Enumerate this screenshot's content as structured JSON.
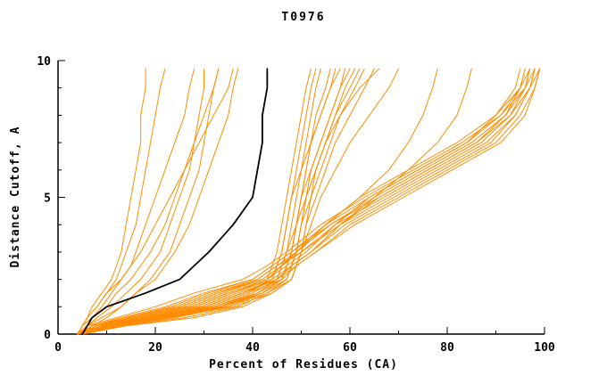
{
  "chart_data": {
    "type": "line",
    "title": "T0976",
    "xlabel": "Percent of Residues (CA)",
    "ylabel": "Distance Cutoff, A",
    "xlim": [
      0,
      100
    ],
    "ylim": [
      0,
      10
    ],
    "grid": "off",
    "legend": "none",
    "x_ticks_major": [
      0,
      20,
      40,
      60,
      80,
      100
    ],
    "x_ticks_minor": [
      10,
      30,
      50,
      70,
      90
    ],
    "y_ticks_major": [
      0,
      5,
      10
    ],
    "y_ticks_minor": [
      1,
      2,
      3,
      4,
      6,
      7,
      8,
      9
    ],
    "colors": {
      "model_line": "#ff8c00",
      "reference_line": "#000000",
      "axis": "#000000"
    },
    "cutoffs": [
      0,
      0.3,
      0.6,
      1,
      1.5,
      2,
      2.5,
      3,
      4,
      5,
      6,
      7,
      8,
      9,
      9.7
    ],
    "reference_percents": [
      5,
      6,
      7,
      10,
      18,
      25,
      28,
      31,
      36,
      40,
      41,
      42,
      42,
      43,
      43
    ],
    "series_percents": [
      [
        4,
        8,
        15,
        25,
        33,
        42,
        46,
        49,
        55,
        62,
        72,
        82,
        90,
        95,
        97
      ],
      [
        5,
        10,
        20,
        30,
        38,
        45,
        48,
        52,
        58,
        66,
        76,
        86,
        93,
        97,
        98
      ],
      [
        4,
        7,
        13,
        22,
        30,
        40,
        44,
        48,
        56,
        65,
        75,
        85,
        92,
        96,
        98
      ],
      [
        5,
        9,
        17,
        27,
        35,
        43,
        47,
        51,
        57,
        64,
        74,
        84,
        91,
        95,
        96
      ],
      [
        4,
        8,
        14,
        24,
        32,
        41,
        45,
        50,
        58,
        68,
        78,
        88,
        94,
        97,
        99
      ],
      [
        5,
        11,
        21,
        31,
        39,
        46,
        49,
        53,
        60,
        70,
        80,
        90,
        95,
        98,
        99
      ],
      [
        4,
        6,
        12,
        20,
        28,
        38,
        43,
        47,
        54,
        63,
        73,
        83,
        91,
        96,
        97
      ],
      [
        5,
        10,
        18,
        28,
        36,
        44,
        48,
        52,
        59,
        69,
        79,
        89,
        94,
        97,
        98
      ],
      [
        4,
        9,
        16,
        26,
        34,
        42,
        46,
        50,
        57,
        67,
        77,
        87,
        93,
        96,
        97
      ],
      [
        5,
        8,
        15,
        25,
        33,
        41,
        45,
        49,
        56,
        66,
        76,
        86,
        92,
        95,
        96
      ],
      [
        4,
        7,
        14,
        23,
        31,
        40,
        44,
        48,
        55,
        64,
        74,
        84,
        90,
        94,
        95
      ],
      [
        5,
        10,
        19,
        29,
        37,
        45,
        49,
        53,
        61,
        71,
        81,
        91,
        96,
        98,
        99
      ],
      [
        4,
        10,
        20,
        32,
        40,
        45,
        46,
        47,
        48,
        49,
        50,
        51,
        52,
        53,
        54
      ],
      [
        5,
        12,
        24,
        35,
        42,
        46,
        47,
        48,
        49,
        50,
        51,
        52,
        53,
        55,
        56
      ],
      [
        4,
        9,
        18,
        30,
        38,
        44,
        45,
        46,
        47,
        48,
        49,
        50,
        51,
        52,
        53
      ],
      [
        5,
        11,
        22,
        33,
        41,
        45,
        46,
        47,
        49,
        50,
        52,
        54,
        56,
        58,
        60
      ],
      [
        4,
        10,
        21,
        34,
        42,
        47,
        48,
        49,
        50,
        51,
        52,
        54,
        56,
        58,
        59
      ],
      [
        5,
        13,
        26,
        37,
        43,
        47,
        48,
        49,
        50,
        52,
        54,
        56,
        58,
        61,
        63
      ],
      [
        4,
        8,
        16,
        28,
        36,
        43,
        44,
        45,
        46,
        47,
        48,
        49,
        50,
        51,
        52
      ],
      [
        5,
        12,
        23,
        34,
        41,
        46,
        47,
        48,
        49,
        51,
        53,
        55,
        57,
        60,
        62
      ],
      [
        4,
        11,
        22,
        35,
        43,
        48,
        49,
        50,
        51,
        52,
        53,
        55,
        57,
        59,
        61
      ],
      [
        5,
        10,
        20,
        31,
        39,
        44,
        45,
        46,
        47,
        48,
        50,
        52,
        54,
        56,
        58
      ],
      [
        4,
        9,
        19,
        32,
        41,
        46,
        47,
        48,
        49,
        50,
        51,
        52,
        54,
        56,
        57
      ],
      [
        5,
        14,
        28,
        38,
        44,
        48,
        49,
        50,
        51,
        53,
        55,
        57,
        60,
        63,
        65
      ],
      [
        4,
        10,
        20,
        33,
        42,
        47,
        48,
        49,
        50,
        51,
        53,
        55,
        58,
        62,
        66
      ],
      [
        5,
        11,
        23,
        36,
        44,
        48,
        49,
        50,
        52,
        54,
        57,
        60,
        64,
        68,
        70
      ],
      [
        4,
        5,
        7,
        9,
        11,
        13,
        15,
        16,
        18,
        20,
        22,
        24,
        26,
        27,
        28
      ],
      [
        4,
        5,
        6,
        8,
        10,
        12,
        13,
        14,
        16,
        17,
        18,
        19,
        20,
        21,
        22
      ],
      [
        4,
        5,
        6,
        7,
        9,
        11,
        12,
        13,
        14,
        15,
        16,
        17,
        17,
        18,
        18
      ],
      [
        4,
        6,
        8,
        11,
        14,
        17,
        19,
        21,
        23,
        25,
        27,
        28,
        29,
        30,
        30
      ],
      [
        4,
        5,
        7,
        10,
        12,
        15,
        17,
        19,
        22,
        24,
        26,
        28,
        30,
        32,
        33
      ],
      [
        4,
        6,
        9,
        13,
        16,
        20,
        22,
        24,
        27,
        29,
        31,
        33,
        35,
        36,
        37
      ],
      [
        5,
        7,
        10,
        13,
        16,
        19,
        21,
        23,
        25,
        27,
        29,
        30,
        31,
        32,
        33
      ],
      [
        4,
        5,
        6,
        8,
        10,
        13,
        15,
        17,
        20,
        23,
        26,
        29,
        32,
        35,
        36
      ],
      [
        4,
        9,
        17,
        27,
        35,
        43,
        46,
        49,
        55,
        62,
        68,
        72,
        75,
        77,
        78
      ],
      [
        5,
        10,
        19,
        30,
        38,
        45,
        48,
        52,
        58,
        65,
        72,
        78,
        82,
        84,
        85
      ]
    ]
  }
}
